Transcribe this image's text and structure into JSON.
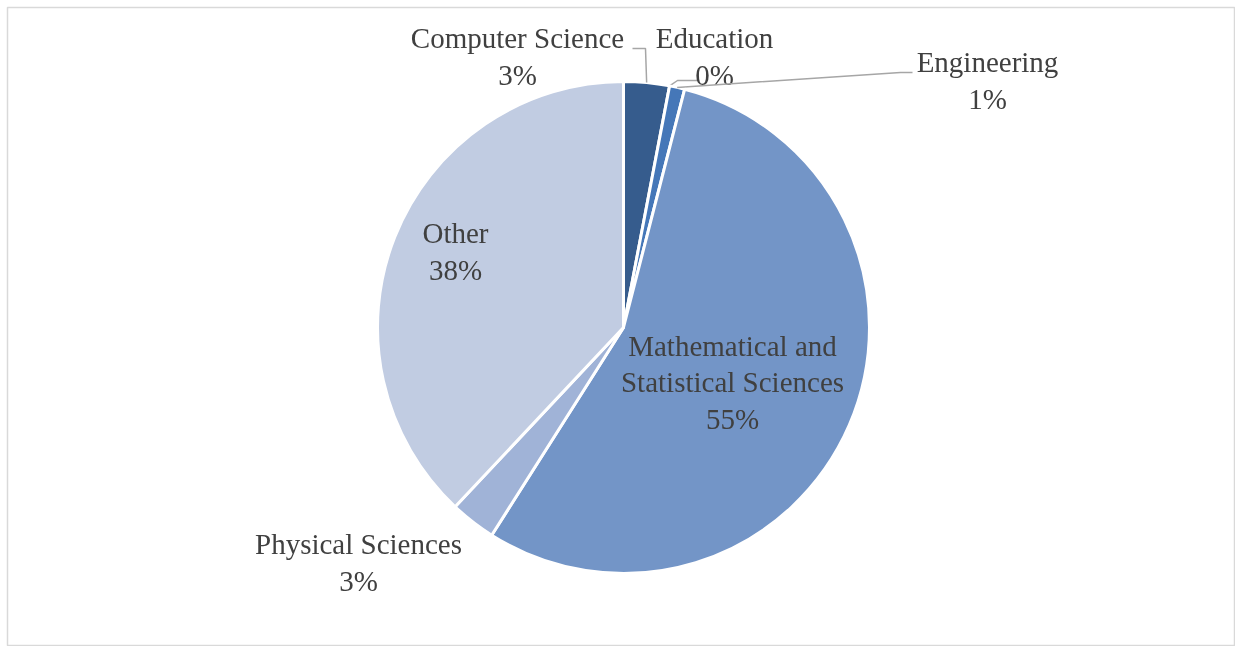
{
  "chart_data": {
    "type": "pie",
    "categories": [
      "Computer Science",
      "Education",
      "Engineering",
      "Mathematical and\nStatistical Sciences",
      "Physical Sciences",
      "Other"
    ],
    "values": [
      3,
      0,
      1,
      55,
      3,
      38
    ],
    "value_labels": [
      "3%",
      "0%",
      "1%",
      "55%",
      "3%",
      "38%"
    ],
    "colors": [
      "#365c8d",
      "#4a7ebb",
      "#4577b8",
      "#7395c7",
      "#a0b3d7",
      "#c1cce2"
    ]
  }
}
